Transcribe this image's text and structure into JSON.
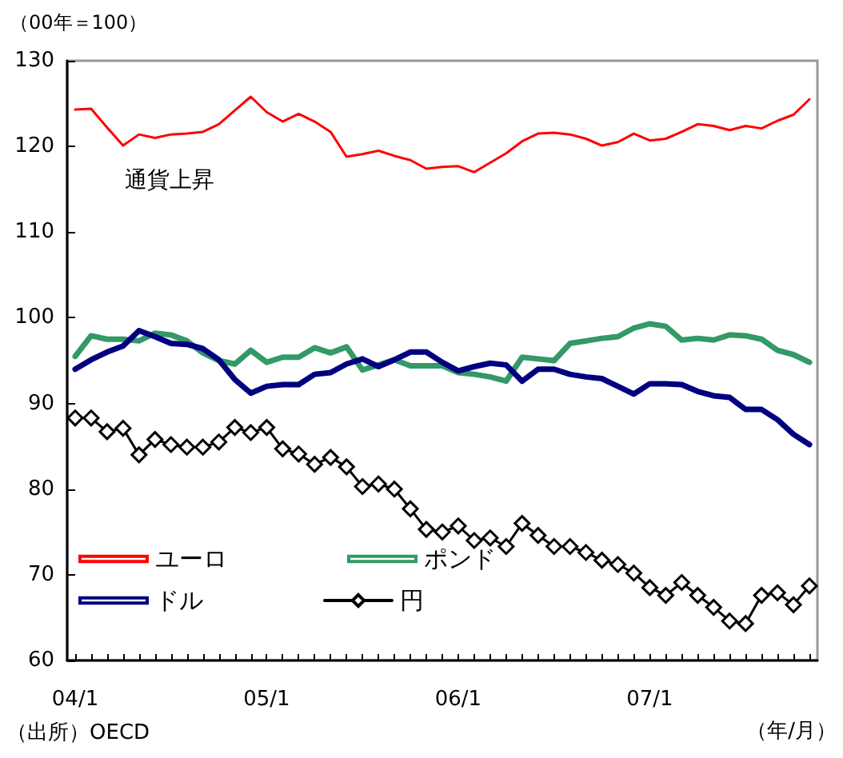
{
  "chart_data": {
    "type": "line",
    "ylabel": "（00年＝100）",
    "xlabel": "（年/月）",
    "annotations": [
      "通貨上昇",
      "（出所）OECD"
    ],
    "categories": [
      "04/1",
      null,
      null,
      null,
      null,
      null,
      null,
      null,
      null,
      null,
      null,
      null,
      "05/1",
      null,
      null,
      null,
      null,
      null,
      null,
      null,
      null,
      null,
      null,
      null,
      "06/1",
      null,
      null,
      null,
      null,
      null,
      null,
      null,
      null,
      null,
      null,
      null,
      "07/1",
      null,
      null,
      null,
      null,
      null,
      null,
      null,
      null,
      null,
      null
    ],
    "series": [
      {
        "name": "ユーロ",
        "color": "#ff0000",
        "marker": "none",
        "values": [
          124.3,
          124.4,
          122.2,
          120.1,
          121.4,
          121.0,
          121.4,
          121.5,
          121.7,
          122.6,
          124.2,
          125.8,
          124.0,
          122.9,
          123.8,
          122.9,
          121.7,
          118.8,
          119.1,
          119.5,
          118.9,
          118.4,
          117.4,
          117.6,
          117.7,
          117.0,
          118.1,
          119.2,
          120.6,
          121.5,
          121.6,
          121.4,
          120.9,
          120.1,
          120.5,
          121.5,
          120.7,
          120.9,
          121.7,
          122.6,
          122.4,
          121.9,
          122.4,
          122.1,
          123.0,
          123.7,
          125.5
        ]
      },
      {
        "name": "ポンド",
        "color": "#339966",
        "marker": "none",
        "values": [
          95.5,
          97.9,
          97.5,
          97.5,
          97.3,
          98.2,
          98.0,
          97.3,
          95.9,
          95.0,
          94.6,
          96.2,
          94.8,
          95.4,
          95.4,
          96.5,
          95.9,
          96.6,
          93.9,
          94.5,
          95.1,
          94.4,
          94.4,
          94.4,
          93.6,
          93.4,
          93.1,
          92.6,
          95.4,
          95.2,
          95.0,
          97.0,
          97.3,
          97.6,
          97.8,
          98.8,
          99.3,
          99.0,
          97.4,
          97.6,
          97.4,
          98.0,
          97.9,
          97.5,
          96.2,
          95.7,
          94.8
        ]
      },
      {
        "name": "ドル",
        "color": "#000080",
        "marker": "none",
        "values": [
          94.0,
          95.1,
          96.0,
          96.7,
          98.5,
          97.8,
          97.0,
          96.9,
          96.4,
          95.1,
          92.8,
          91.2,
          92.0,
          92.2,
          92.2,
          93.4,
          93.6,
          94.6,
          95.2,
          94.3,
          95.1,
          96.0,
          96.0,
          94.8,
          93.8,
          94.3,
          94.7,
          94.5,
          92.6,
          94.0,
          94.0,
          93.4,
          93.1,
          92.9,
          92.0,
          91.1,
          92.3,
          92.3,
          92.2,
          91.4,
          90.9,
          90.7,
          89.3,
          89.3,
          88.1,
          86.4,
          85.2
        ]
      },
      {
        "name": "円",
        "color": "#000000",
        "marker": "diamond",
        "values": [
          88.3,
          88.3,
          86.7,
          87.1,
          84.0,
          85.8,
          85.2,
          84.9,
          84.9,
          85.5,
          87.2,
          86.6,
          87.2,
          84.7,
          84.1,
          82.9,
          83.7,
          82.6,
          80.3,
          80.6,
          80.0,
          77.7,
          75.3,
          75.0,
          75.7,
          74.0,
          74.3,
          73.3,
          76.0,
          74.6,
          73.3,
          73.3,
          72.6,
          71.7,
          71.2,
          70.2,
          68.5,
          67.6,
          69.1,
          67.6,
          66.2,
          64.6,
          64.3,
          67.6,
          67.9,
          66.5,
          68.7
        ]
      }
    ],
    "ylim": [
      60,
      130
    ],
    "yticks": [
      60,
      70,
      80,
      90,
      100,
      110,
      120,
      130
    ],
    "grid": false,
    "legend": "bottom left"
  }
}
